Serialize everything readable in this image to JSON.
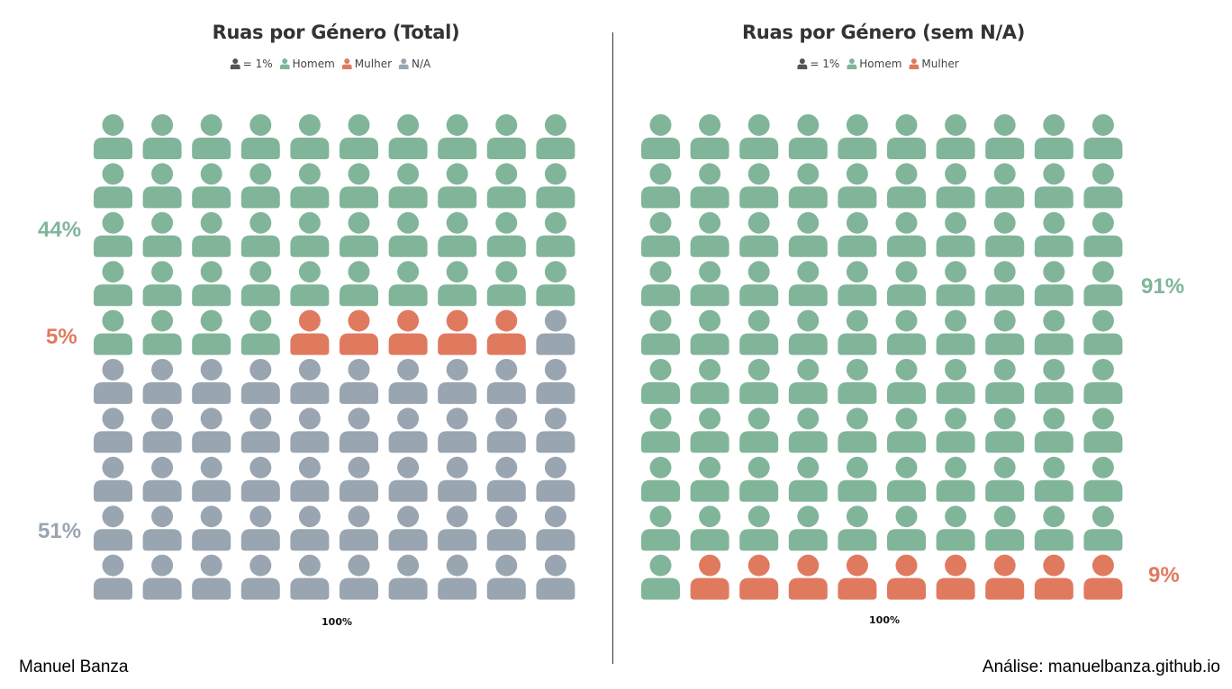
{
  "colors": {
    "homem": "#81b59a",
    "mulher": "#e07a5f",
    "na": "#99a5b0",
    "unit": "#555555"
  },
  "chart_data": [
    {
      "type": "waffle",
      "title": "Ruas por Género (Total)",
      "legend": {
        "unit_label": "= 1%",
        "items": [
          {
            "key": "homem",
            "label": "Homem"
          },
          {
            "key": "mulher",
            "label": "Mulher"
          },
          {
            "key": "na",
            "label": "N/A"
          }
        ]
      },
      "grid": {
        "rows": 10,
        "cols": 10
      },
      "order": [
        "homem",
        "mulher",
        "na"
      ],
      "values": {
        "homem": 44,
        "mulher": 5,
        "na": 51
      },
      "labels": [
        {
          "key": "homem",
          "text": "44%"
        },
        {
          "key": "mulher",
          "text": "5%"
        },
        {
          "key": "na",
          "text": "51%"
        }
      ],
      "xlabel": "100%"
    },
    {
      "type": "waffle",
      "title": "Ruas por Género (sem N/A)",
      "legend": {
        "unit_label": "= 1%",
        "items": [
          {
            "key": "homem",
            "label": "Homem"
          },
          {
            "key": "mulher",
            "label": "Mulher"
          }
        ]
      },
      "grid": {
        "rows": 10,
        "cols": 10
      },
      "order": [
        "homem",
        "mulher"
      ],
      "values": {
        "homem": 91,
        "mulher": 9
      },
      "labels": [
        {
          "key": "homem",
          "text": "91%"
        },
        {
          "key": "mulher",
          "text": "9%"
        }
      ],
      "xlabel": "100%"
    }
  ],
  "footer": {
    "author": "Manuel Banza",
    "source": "Análise: manuelbanza.github.io"
  }
}
